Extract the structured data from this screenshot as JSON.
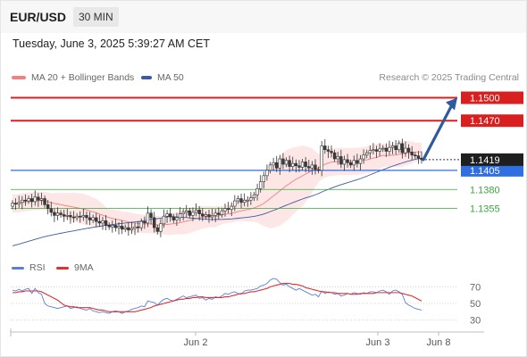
{
  "header": {
    "pair": "EUR/USD",
    "timeframe": "30 MIN"
  },
  "timestamp": "Tuesday, June 3, 2025 5:39:27 AM CET",
  "legend": {
    "ma20": "MA 20 + Bollinger Bands",
    "ma50": "MA 50",
    "credit": "Research © 2025 Trading Central"
  },
  "rsi_legend": {
    "rsi": "RSI",
    "ma": "9MA"
  },
  "colors": {
    "bollinger": "#f4a6a6",
    "ma20": "#f28080",
    "ma50": "#3b5ba5",
    "resistance": "#d92020",
    "support": "#3aa83a",
    "pivot": "#2f6fe0",
    "arrow": "#2f5a9e",
    "last_price": "#1f1f1f",
    "rsi": "#5b7fd6",
    "rsi_ma": "#e03030"
  },
  "chart_data": [
    {
      "type": "candlestick",
      "x_labels": [
        "Jun 2",
        "Jun 3",
        "Jun 8"
      ],
      "ylim": [
        1.1295,
        1.1517
      ],
      "last_price": "1.1419",
      "levels": [
        {
          "value": "1.1500",
          "kind": "resistance"
        },
        {
          "value": "1.1470",
          "kind": "resistance"
        },
        {
          "value": "1.1405",
          "kind": "pivot"
        },
        {
          "value": "1.1380",
          "kind": "support"
        },
        {
          "value": "1.1355",
          "kind": "support"
        }
      ],
      "close": [
        1.1362,
        1.1361,
        1.1363,
        1.1366,
        1.1365,
        1.1368,
        1.1364,
        1.137,
        1.1366,
        1.1368,
        1.136,
        1.1355,
        1.135,
        1.1346,
        1.1349,
        1.1347,
        1.1345,
        1.1346,
        1.1344,
        1.1343,
        1.1345,
        1.1344,
        1.1346,
        1.1343,
        1.134,
        1.1343,
        1.1338,
        1.1336,
        1.1339,
        1.1333,
        1.1331,
        1.1333,
        1.133,
        1.1332,
        1.1328,
        1.133,
        1.1327,
        1.1329,
        1.1331,
        1.133,
        1.1338,
        1.1336,
        1.1349,
        1.1343,
        1.133,
        1.1325,
        1.1335,
        1.1345,
        1.1348,
        1.1344,
        1.134,
        1.1343,
        1.1348,
        1.135,
        1.1352,
        1.1346,
        1.135,
        1.1353,
        1.1348,
        1.1345,
        1.1347,
        1.1344,
        1.1346,
        1.1349,
        1.1347,
        1.1352,
        1.1355,
        1.1354,
        1.1358,
        1.1365,
        1.1368,
        1.1363,
        1.1366,
        1.1366,
        1.1369,
        1.1373,
        1.1381,
        1.139,
        1.1398,
        1.1405,
        1.1412,
        1.1415,
        1.1408,
        1.142,
        1.1413,
        1.1418,
        1.141,
        1.1414,
        1.1411,
        1.1409,
        1.1416,
        1.141,
        1.1408,
        1.1412,
        1.1406,
        1.1405,
        1.1437,
        1.1432,
        1.143,
        1.1428,
        1.142,
        1.1423,
        1.1413,
        1.1419,
        1.1415,
        1.1412,
        1.1418,
        1.1414,
        1.142,
        1.1425,
        1.1428,
        1.1431,
        1.1432,
        1.143,
        1.1433,
        1.1434,
        1.143,
        1.1435,
        1.1437,
        1.1432,
        1.144,
        1.1428,
        1.1434,
        1.1429,
        1.1425,
        1.1424,
        1.1421,
        1.1419
      ],
      "ma20_last": 1.1431,
      "ma50_last": 1.1418,
      "bb_upper_last": 1.1446,
      "bb_lower_last": 1.1414,
      "projection": {
        "from": "1.1419",
        "to": "1.1500"
      }
    },
    {
      "type": "line",
      "title": "RSI",
      "ylim": [
        20,
        80
      ],
      "yticks": [
        70,
        50,
        30
      ],
      "series": [
        {
          "name": "RSI",
          "values": [
            66,
            65,
            67,
            65,
            67,
            68,
            62,
            68,
            63,
            61,
            50,
            47,
            46,
            45,
            44,
            45,
            46,
            47,
            44,
            45,
            46,
            44,
            43,
            42,
            44,
            41,
            40,
            39,
            40,
            39,
            38,
            40,
            41,
            40,
            38,
            40,
            41,
            43,
            44,
            45,
            47,
            46,
            53,
            52,
            51,
            48,
            52,
            55,
            56,
            54,
            53,
            55,
            57,
            59,
            57,
            58,
            59,
            60,
            56,
            57,
            54,
            56,
            55,
            58,
            57,
            59,
            62,
            61,
            63,
            64,
            62,
            61,
            65,
            66,
            66,
            67,
            68,
            71,
            72,
            74,
            78,
            80,
            79,
            75,
            72,
            73,
            70,
            68,
            66,
            68,
            66,
            64,
            62,
            60,
            61,
            58,
            65,
            62,
            64,
            63,
            61,
            62,
            59,
            60,
            62,
            61,
            63,
            62,
            61,
            63,
            62,
            64,
            64,
            63,
            65,
            66,
            64,
            61,
            65,
            66,
            64,
            61,
            51,
            48,
            46,
            44,
            43,
            42
          ]
        },
        {
          "name": "9MA",
          "values": [
            63,
            63,
            64,
            64,
            65,
            65,
            65,
            65,
            65,
            64,
            62,
            60,
            58,
            56,
            54,
            51,
            48,
            47,
            46,
            46,
            45,
            45,
            45,
            45,
            45,
            44,
            43,
            42,
            42,
            41,
            40,
            40,
            40,
            40,
            40,
            40,
            40,
            40,
            40,
            41,
            42,
            43,
            44,
            45,
            47,
            48,
            49,
            50,
            51,
            52,
            53,
            54,
            55,
            55,
            56,
            56,
            57,
            57,
            58,
            58,
            57,
            57,
            57,
            57,
            57,
            57,
            58,
            58,
            59,
            60,
            61,
            62,
            62,
            63,
            64,
            64,
            65,
            66,
            67,
            68,
            70,
            71,
            72,
            73,
            74,
            74,
            74,
            73,
            73,
            72,
            71,
            69,
            68,
            67,
            66,
            65,
            64,
            64,
            63,
            63,
            63,
            62,
            62,
            62,
            62,
            61,
            61,
            61,
            62,
            62,
            62,
            62,
            62,
            63,
            63,
            63,
            63,
            63,
            63,
            63,
            63,
            62,
            61,
            60,
            59,
            57,
            55,
            53
          ]
        }
      ]
    }
  ]
}
